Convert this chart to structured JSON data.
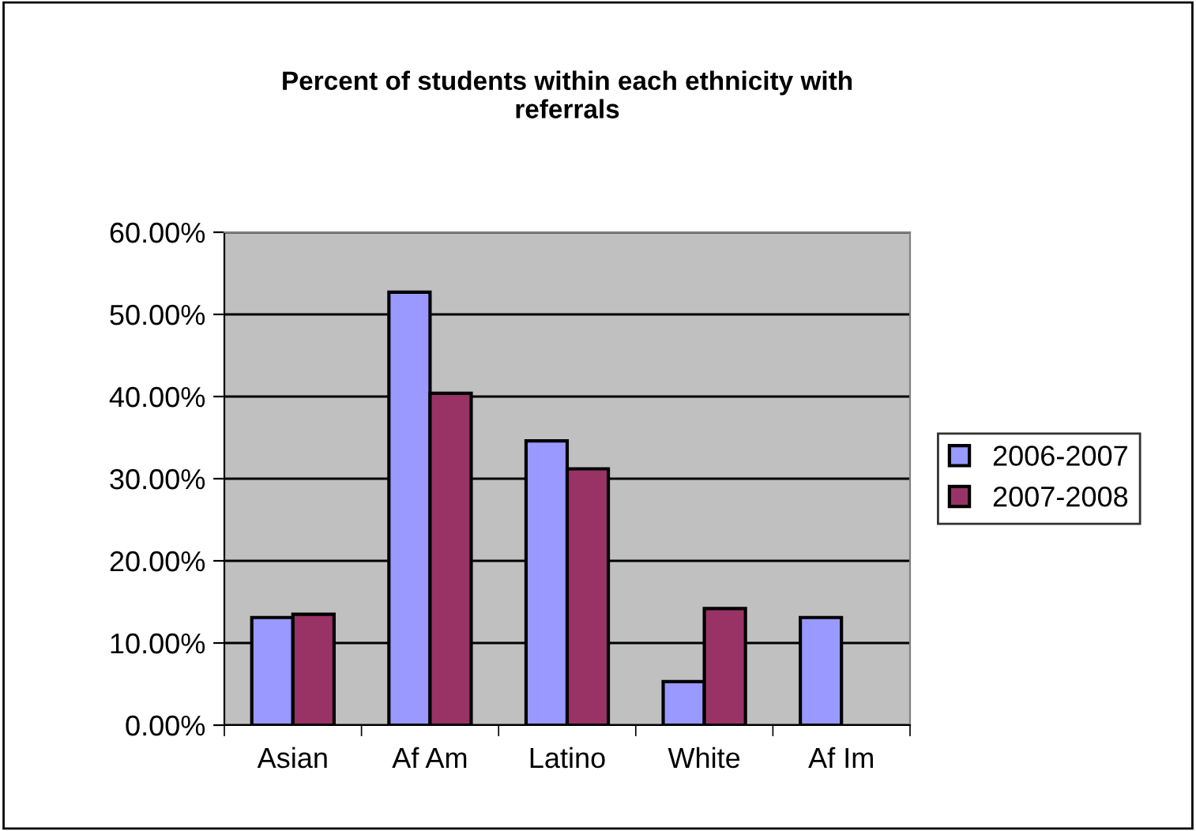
{
  "chart_data": {
    "type": "bar",
    "title": "Percent of students within each ethnicity with\nreferrals",
    "categories": [
      "Asian",
      "Af Am",
      "Latino",
      "White",
      "Af Im"
    ],
    "series": [
      {
        "name": "2006-2007",
        "color": "#9999ff",
        "values": [
          13.1,
          52.7,
          34.6,
          5.3,
          13.1
        ]
      },
      {
        "name": "2007-2008",
        "color": "#993366",
        "values": [
          13.5,
          40.4,
          31.2,
          14.2,
          null
        ]
      }
    ],
    "ylim": [
      0,
      60
    ],
    "yticks": [
      {
        "value": 0,
        "label": "0.00%"
      },
      {
        "value": 10,
        "label": "10.00%"
      },
      {
        "value": 20,
        "label": "20.00%"
      },
      {
        "value": 30,
        "label": "30.00%"
      },
      {
        "value": 40,
        "label": "40.00%"
      },
      {
        "value": 50,
        "label": "50.00%"
      },
      {
        "value": 60,
        "label": "60.00%"
      }
    ],
    "grid": "y",
    "legend": "right"
  }
}
